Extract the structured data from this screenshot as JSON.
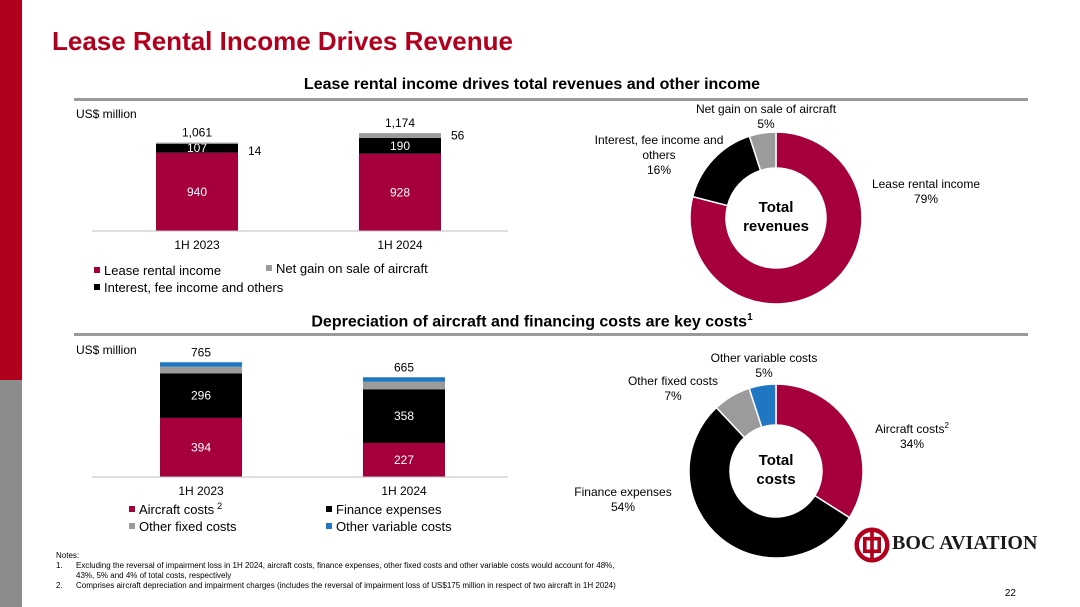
{
  "page": {
    "title": "Lease Rental Income Drives Revenue",
    "page_number": "22",
    "logo_text": "BOC AVIATION"
  },
  "section1": {
    "title": "Lease rental income drives total revenues and other income",
    "unit": "US$ million"
  },
  "section2": {
    "title": "Depreciation of aircraft and financing costs are key costs",
    "title_sup": "1",
    "unit": "US$ million"
  },
  "notes": {
    "heading": "Notes:",
    "items": [
      {
        "num": "1.",
        "text": "Excluding the reversal of impairment loss in 1H 2024, aircraft costs, finance expenses, other fixed costs and other variable costs would account for 48%, 43%, 5% and 4% of total costs, respectively"
      },
      {
        "num": "2.",
        "text": "Comprises aircraft depreciation and impairment charges (includes the reversal of impairment loss of US$175 million in respect of two aircraft in 1H 2024)"
      }
    ]
  },
  "colors": {
    "red": "#a6003c",
    "black": "#000000",
    "grey": "#9b9b9b",
    "blue": "#1f77c4",
    "brand": "#b0001e"
  },
  "chart_data": [
    {
      "type": "bar",
      "stacked": true,
      "categories": [
        "1H 2023",
        "1H 2024"
      ],
      "series": [
        {
          "name": "Lease rental income",
          "color": "#a6003c",
          "values": [
            940,
            928
          ],
          "labels": [
            "940",
            "928"
          ]
        },
        {
          "name": "Interest, fee income and others",
          "color": "#000000",
          "values": [
            107,
            190
          ],
          "labels": [
            "107",
            "190"
          ]
        },
        {
          "name": "Net gain on sale of aircraft",
          "color": "#9b9b9b",
          "values": [
            14,
            56
          ],
          "labels": [
            "14",
            "56"
          ]
        }
      ],
      "totals": [
        "1,061",
        "1,174"
      ],
      "legend": [
        {
          "name": "Lease rental income",
          "color": "#a6003c"
        },
        {
          "name": "Net gain on sale of aircraft",
          "color": "#9b9b9b"
        },
        {
          "name": "Interest, fee income and others",
          "color": "#000000"
        }
      ],
      "ylim": [
        0,
        1200
      ]
    },
    {
      "type": "pie",
      "donut": true,
      "center_label": [
        "Total",
        "revenues"
      ],
      "slices": [
        {
          "name": "Lease rental income",
          "value": 79,
          "label": "79%",
          "color": "#a6003c"
        },
        {
          "name": "Interest, fee income and others",
          "value": 16,
          "label": "16%",
          "color": "#000000"
        },
        {
          "name": "Net gain on sale of aircraft",
          "value": 5,
          "label": "5%",
          "color": "#9b9b9b"
        }
      ],
      "slice_labels": [
        {
          "lines": [
            "Lease rental income",
            "79%"
          ]
        },
        {
          "lines": [
            "Interest, fee income and",
            "others",
            "16%"
          ]
        },
        {
          "lines": [
            "Net gain on sale of aircraft",
            "5%"
          ]
        }
      ]
    },
    {
      "type": "bar",
      "stacked": true,
      "categories": [
        "1H 2023",
        "1H 2024"
      ],
      "series": [
        {
          "name": "Aircraft costs",
          "color": "#a6003c",
          "values": [
            394,
            227
          ],
          "labels": [
            "394",
            "227"
          ]
        },
        {
          "name": "Finance expenses",
          "color": "#000000",
          "values": [
            296,
            358
          ],
          "labels": [
            "296",
            "358"
          ]
        },
        {
          "name": "Other fixed costs",
          "color": "#9b9b9b",
          "values": [
            45,
            50
          ],
          "labels": [
            "",
            ""
          ]
        },
        {
          "name": "Other variable costs",
          "color": "#1f77c4",
          "values": [
            30,
            30
          ],
          "labels": [
            "",
            ""
          ]
        }
      ],
      "totals": [
        "765",
        "665"
      ],
      "legend": [
        {
          "name": "Aircraft costs",
          "sup": "2",
          "color": "#a6003c"
        },
        {
          "name": "Finance expenses",
          "sup": "",
          "color": "#000000"
        },
        {
          "name": "Other fixed costs",
          "sup": "",
          "color": "#9b9b9b"
        },
        {
          "name": "Other variable costs",
          "sup": "",
          "color": "#1f77c4"
        }
      ],
      "ylim": [
        0,
        800
      ]
    },
    {
      "type": "pie",
      "donut": true,
      "center_label": [
        "Total",
        "costs"
      ],
      "slices": [
        {
          "name": "Aircraft costs",
          "value": 34,
          "label": "34%",
          "color": "#a6003c"
        },
        {
          "name": "Finance expenses",
          "value": 54,
          "label": "54%",
          "color": "#000000"
        },
        {
          "name": "Other fixed costs",
          "value": 7,
          "label": "7%",
          "color": "#9b9b9b"
        },
        {
          "name": "Other variable costs",
          "value": 5,
          "label": "5%",
          "color": "#1f77c4"
        }
      ],
      "slice_labels": [
        {
          "lines": [
            "Aircraft costs",
            "34%"
          ],
          "sup": "2"
        },
        {
          "lines": [
            "Finance expenses",
            "54%"
          ]
        },
        {
          "lines": [
            "Other fixed costs",
            "7%"
          ]
        },
        {
          "lines": [
            "Other variable costs",
            "5%"
          ]
        }
      ]
    }
  ]
}
